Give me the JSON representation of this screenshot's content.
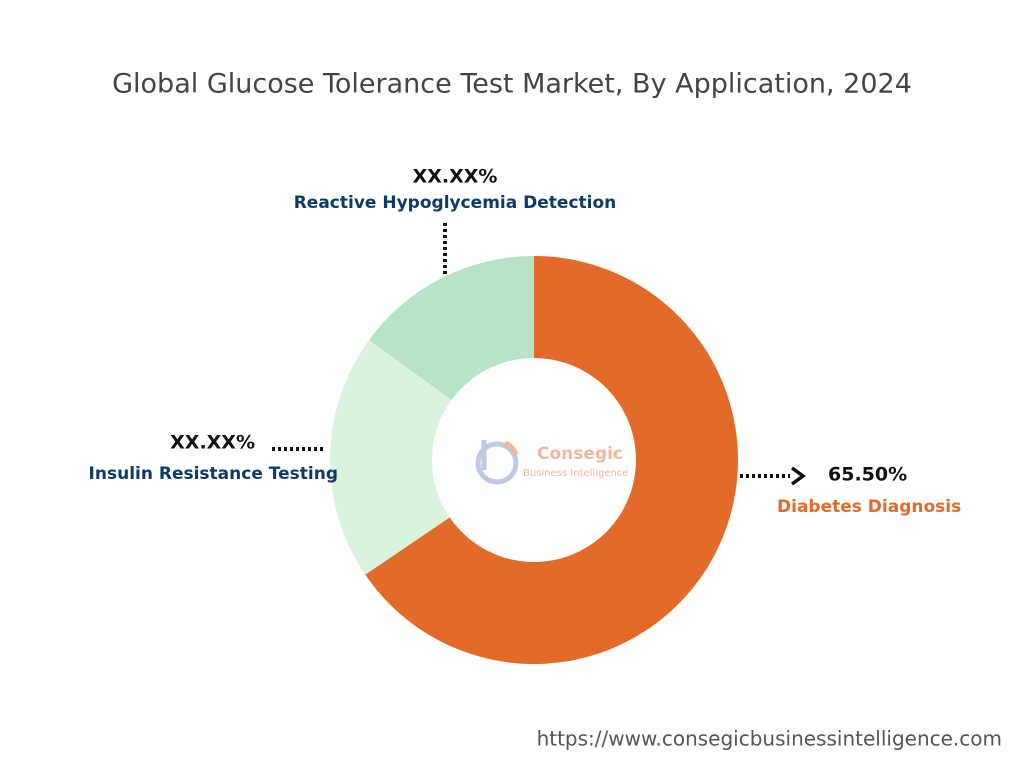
{
  "chart_data": {
    "type": "donut",
    "title": "Global Glucose Tolerance Test Market, By Application, 2024",
    "categories": [
      "Diabetes Diagnosis",
      "Insulin Resistance Testing",
      "Reactive Hypoglycemia Detection"
    ],
    "values": [
      65.5,
      19.5,
      15
    ],
    "value_labels": [
      "65.50%",
      "XX.XX%",
      "XX.XX%"
    ],
    "colors": [
      "#e36a28",
      "#daf3de",
      "#b7e4c7"
    ]
  },
  "logo": {
    "name": "Consegic",
    "tagline": "Business Intelligence"
  },
  "footer": {
    "url": "https://www.consegicbusinessintelligence.com"
  }
}
